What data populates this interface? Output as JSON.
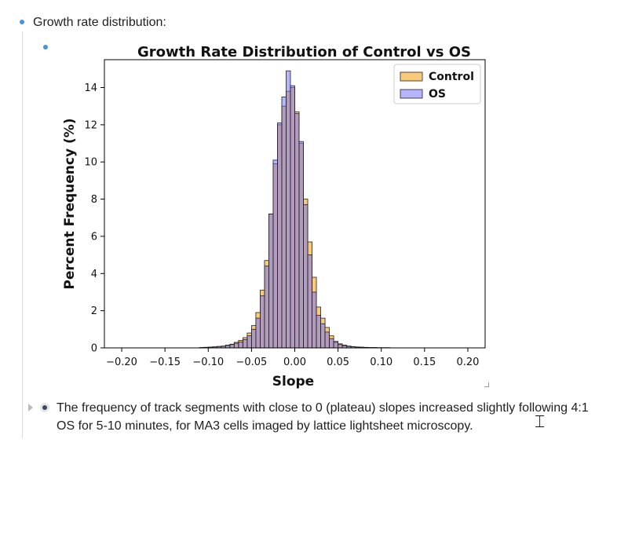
{
  "outline": {
    "item1_label": "Growth rate distribution:",
    "item2_text": "The frequency of track segments with close to 0 (plateau) slopes increased slightly following 4:1",
    "item2_text_line2": "OS for 5-10 minutes, for MA3 cells imaged by lattice lightsheet microscopy.",
    "bullet_color": "#4a90e2",
    "icons": {
      "bullet": "dot-icon",
      "collapse": "triangle-right-icon",
      "focus": "ring-bullet-icon",
      "cursor": "text-cursor-icon"
    }
  },
  "chart_data": {
    "type": "bar",
    "title": "Growth Rate Distribution of Control vs OS",
    "xlabel": "Slope",
    "ylabel": "Percent Frequency (%)",
    "xlim": [
      -0.22,
      0.22
    ],
    "ylim": [
      0,
      15.5
    ],
    "xticks": [
      -0.2,
      -0.15,
      -0.1,
      -0.05,
      0.0,
      0.05,
      0.1,
      0.15,
      0.2
    ],
    "xtick_labels": [
      "−0.20",
      "−0.15",
      "−0.10",
      "−0.05",
      "0.00",
      "0.05",
      "0.10",
      "0.15",
      "0.20"
    ],
    "yticks": [
      0,
      2,
      4,
      6,
      8,
      10,
      12,
      14
    ],
    "ytick_labels": [
      "0",
      "2",
      "4",
      "6",
      "8",
      "10",
      "12",
      "14"
    ],
    "bin_width": 0.005,
    "bin_lefts": [
      -0.11,
      -0.105,
      -0.1,
      -0.095,
      -0.09,
      -0.085,
      -0.08,
      -0.075,
      -0.07,
      -0.065,
      -0.06,
      -0.055,
      -0.05,
      -0.045,
      -0.04,
      -0.035,
      -0.03,
      -0.025,
      -0.02,
      -0.015,
      -0.01,
      -0.005,
      0.0,
      0.005,
      0.01,
      0.015,
      0.02,
      0.025,
      0.03,
      0.035,
      0.04,
      0.045,
      0.05,
      0.055,
      0.06,
      0.065,
      0.07,
      0.075,
      0.08,
      0.085,
      0.09,
      0.095,
      0.1,
      0.105
    ],
    "legend_position": "top-right",
    "series": [
      {
        "name": "Control",
        "color": "#f5a623",
        "values": [
          0.02,
          0.03,
          0.04,
          0.06,
          0.08,
          0.1,
          0.15,
          0.2,
          0.3,
          0.4,
          0.55,
          0.8,
          1.2,
          1.9,
          3.1,
          4.7,
          7.2,
          9.9,
          12.0,
          13.0,
          13.8,
          14.0,
          12.7,
          11.0,
          8.0,
          5.7,
          3.8,
          2.2,
          1.6,
          1.1,
          0.65,
          0.35,
          0.22,
          0.15,
          0.1,
          0.07,
          0.05,
          0.04,
          0.03,
          0.02,
          0.02,
          0.01,
          0.01,
          0.01
        ]
      },
      {
        "name": "OS",
        "color": "#6b6bff",
        "values": [
          0.02,
          0.03,
          0.04,
          0.05,
          0.07,
          0.09,
          0.13,
          0.18,
          0.25,
          0.32,
          0.45,
          0.65,
          1.0,
          1.6,
          2.8,
          4.4,
          7.2,
          10.1,
          12.1,
          13.5,
          14.9,
          14.1,
          12.6,
          11.1,
          7.7,
          5.0,
          3.0,
          1.75,
          1.3,
          0.85,
          0.5,
          0.3,
          0.18,
          0.12,
          0.08,
          0.06,
          0.04,
          0.03,
          0.02,
          0.02,
          0.01,
          0.01,
          0.01,
          0.01
        ]
      }
    ]
  }
}
